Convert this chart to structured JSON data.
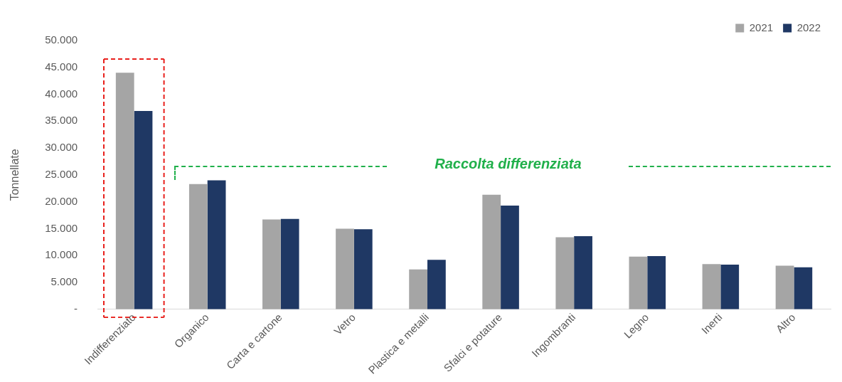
{
  "chart_data": {
    "type": "bar",
    "ylabel": "Tonnellate",
    "categories": [
      "Indifferenziato",
      "Organico",
      "Carta e cartone",
      "Vetro",
      "Plastica e metalli",
      "Sfalci e potature",
      "Ingombranti",
      "Legno",
      "Inerti",
      "Altro"
    ],
    "series": [
      {
        "name": "2021",
        "color": "#a5a5a5",
        "values": [
          44000,
          23300,
          16700,
          15000,
          7400,
          21300,
          13400,
          9800,
          8400,
          8100
        ]
      },
      {
        "name": "2022",
        "color": "#1f3864",
        "values": [
          36900,
          24000,
          16800,
          14900,
          9200,
          19300,
          13600,
          9900,
          8300,
          7800
        ]
      }
    ],
    "ylim": [
      0,
      50000
    ],
    "yticks": [
      {
        "value": 0,
        "label": "-"
      },
      {
        "value": 5000,
        "label": "5.000"
      },
      {
        "value": 10000,
        "label": "10.000"
      },
      {
        "value": 15000,
        "label": "15.000"
      },
      {
        "value": 20000,
        "label": "20.000"
      },
      {
        "value": 25000,
        "label": "25.000"
      },
      {
        "value": 30000,
        "label": "30.000"
      },
      {
        "value": 35000,
        "label": "35.000"
      },
      {
        "value": 40000,
        "label": "40.000"
      },
      {
        "value": 45000,
        "label": "45.000"
      },
      {
        "value": 50000,
        "label": "50.000"
      }
    ],
    "annotations": [
      "Raccolta differenziata"
    ],
    "legend": "top right",
    "grid": false
  }
}
